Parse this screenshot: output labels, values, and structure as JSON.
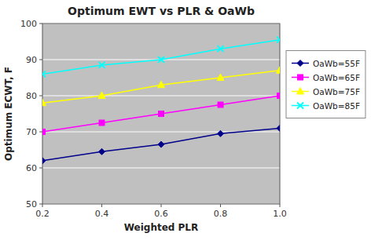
{
  "chart_data": {
    "type": "line",
    "title": "Optimum EWT vs PLR & OaWb",
    "xlabel": "Weighted PLR",
    "ylabel": "Optimum ECWT, F",
    "x": [
      0.2,
      0.4,
      0.6,
      0.8,
      1.0
    ],
    "xlim": [
      0.2,
      1.0
    ],
    "ylim": [
      50,
      100
    ],
    "xticks": [
      0.2,
      0.4,
      0.6,
      0.8,
      {
        "value": 1.0,
        "label": "1.0"
      }
    ],
    "yticks": [
      50,
      60,
      70,
      80,
      90,
      100
    ],
    "grid": true,
    "legend": "right",
    "series": [
      {
        "name": "OaWb=55F",
        "color": "#00008B",
        "marker": "diamond",
        "values": [
          62.0,
          64.5,
          66.5,
          69.5,
          71.0
        ]
      },
      {
        "name": "OaWb=65F",
        "color": "#FF00FF",
        "marker": "square",
        "values": [
          70.0,
          72.5,
          75.0,
          77.5,
          80.0
        ]
      },
      {
        "name": "OaWb=75F",
        "color": "#FFFF00",
        "marker": "triangle",
        "values": [
          78.0,
          80.0,
          83.0,
          85.0,
          87.0
        ]
      },
      {
        "name": "OaWb=85F",
        "color": "#00FFFF",
        "marker": "x",
        "values": [
          86.0,
          88.5,
          90.0,
          93.0,
          95.5
        ]
      }
    ]
  }
}
